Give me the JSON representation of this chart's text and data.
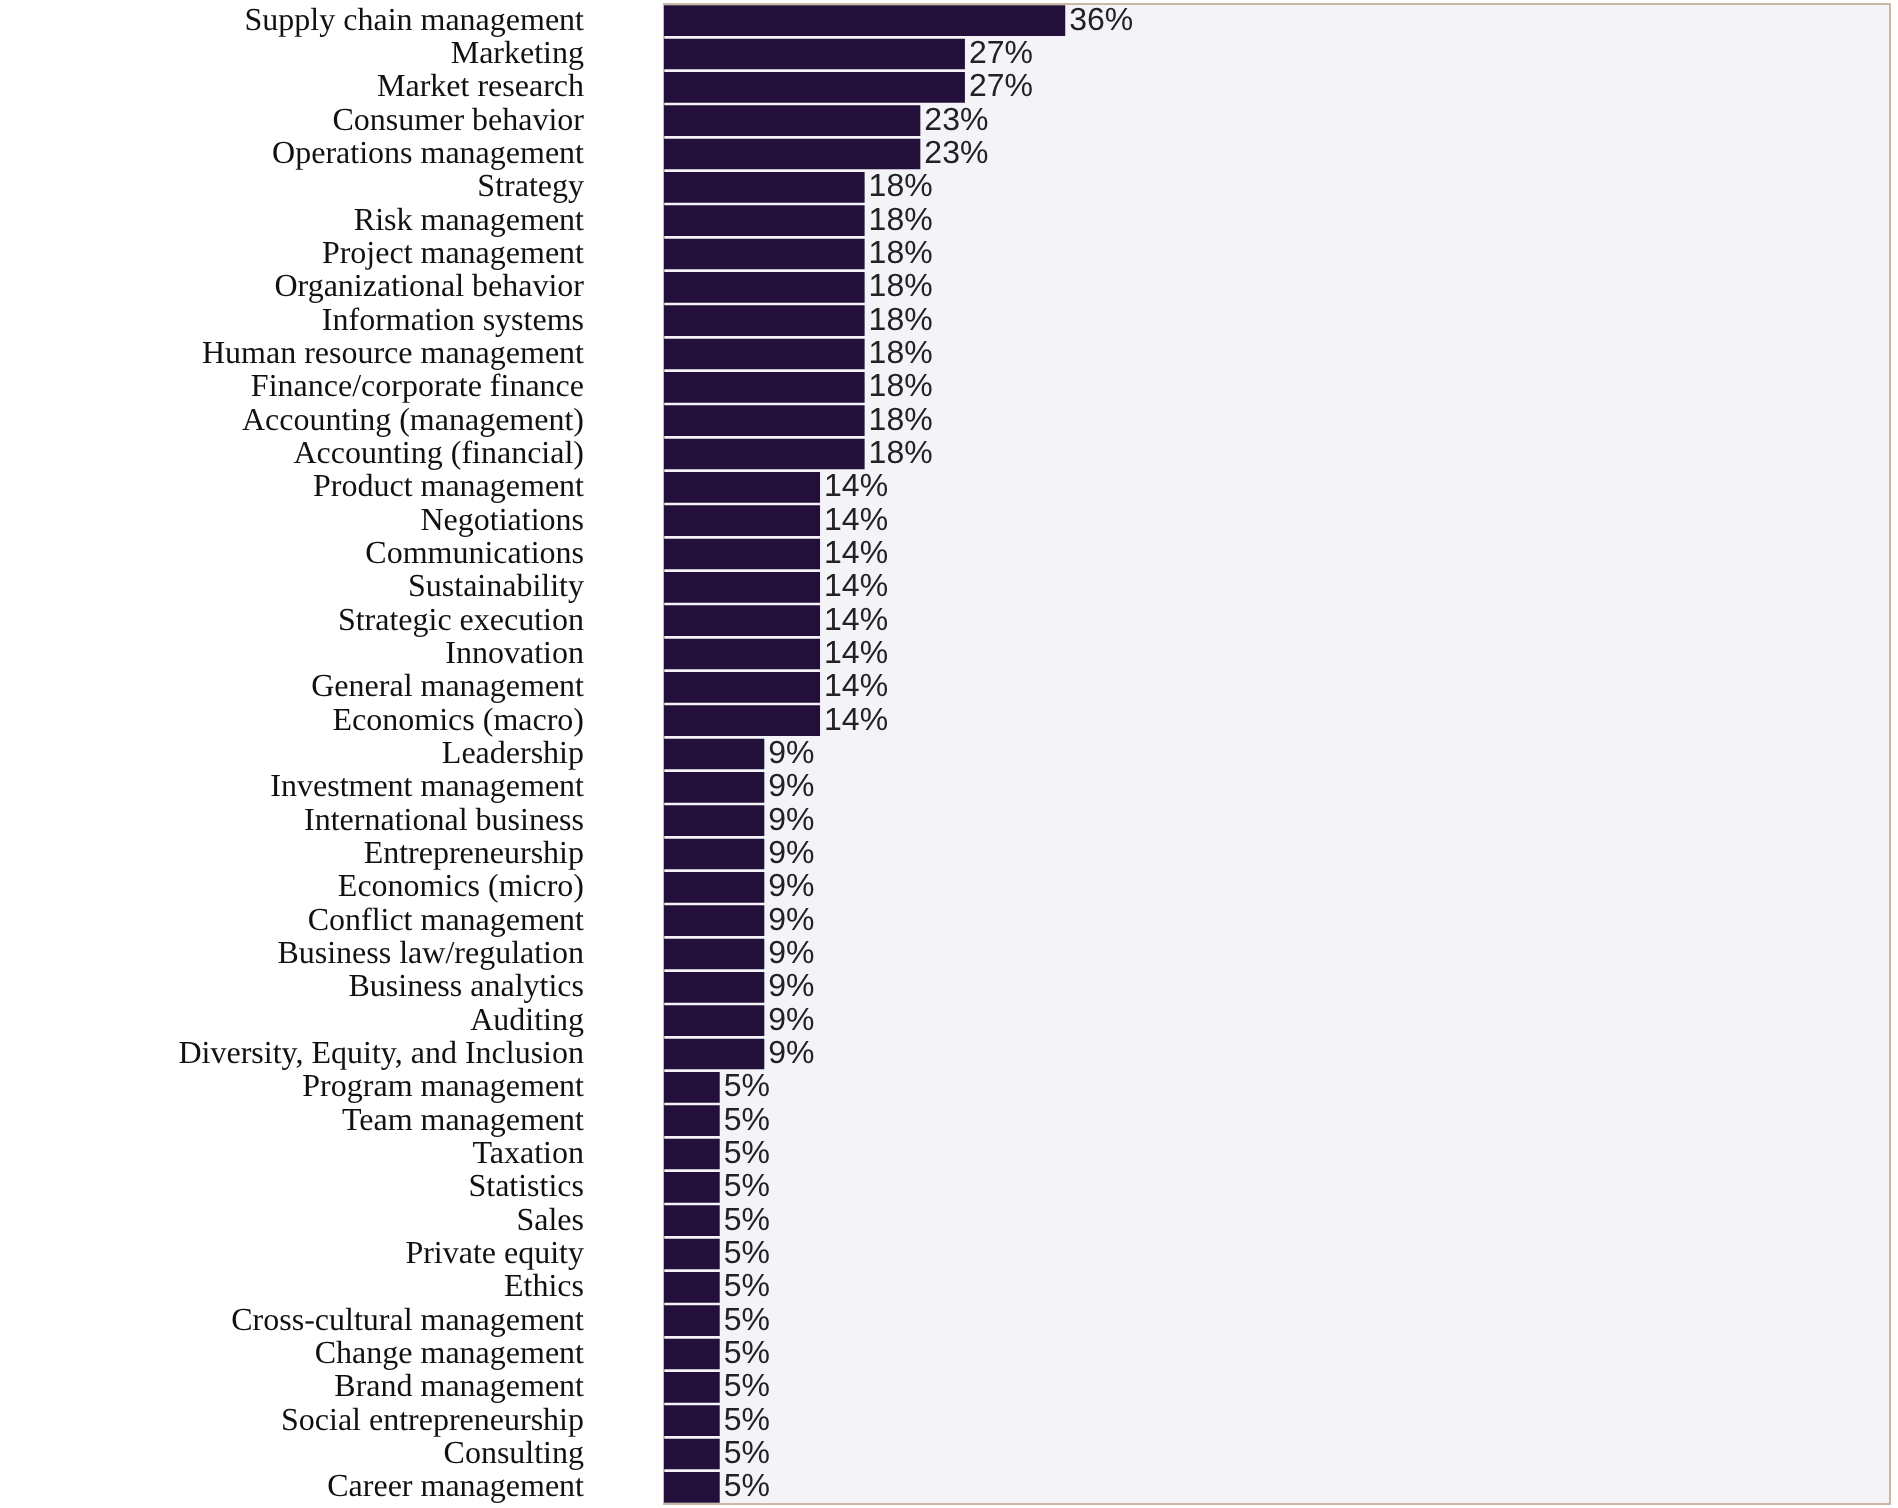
{
  "chart_data": {
    "type": "bar",
    "orientation": "horizontal",
    "categories": [
      "Supply chain management",
      "Marketing",
      "Market research",
      "Consumer behavior",
      "Operations management",
      "Strategy",
      "Risk management",
      "Project management",
      "Organizational behavior",
      "Information systems",
      "Human resource management",
      "Finance/corporate finance",
      "Accounting (management)",
      "Accounting (financial)",
      "Product management",
      "Negotiations",
      "Communications",
      "Sustainability",
      "Strategic execution",
      "Innovation",
      "General management",
      "Economics (macro)",
      "Leadership",
      "Investment management",
      "International business",
      "Entrepreneurship",
      "Economics (micro)",
      "Conflict management",
      "Business law/regulation",
      "Business analytics",
      "Auditing",
      "Diversity, Equity, and Inclusion",
      "Program management",
      "Team management",
      "Taxation",
      "Statistics",
      "Sales",
      "Private equity",
      "Ethics",
      "Cross-cultural management",
      "Change management",
      "Brand management",
      "Social entrepreneurship",
      "Consulting",
      "Career management"
    ],
    "values": [
      36,
      27,
      27,
      23,
      23,
      18,
      18,
      18,
      18,
      18,
      18,
      18,
      18,
      18,
      14,
      14,
      14,
      14,
      14,
      14,
      14,
      14,
      9,
      9,
      9,
      9,
      9,
      9,
      9,
      9,
      9,
      9,
      5,
      5,
      5,
      5,
      5,
      5,
      5,
      5,
      5,
      5,
      5,
      5,
      5
    ],
    "value_labels": [
      "36%",
      "27%",
      "27%",
      "23%",
      "23%",
      "18%",
      "18%",
      "18%",
      "18%",
      "18%",
      "18%",
      "18%",
      "18%",
      "18%",
      "14%",
      "14%",
      "14%",
      "14%",
      "14%",
      "14%",
      "14%",
      "14%",
      "9%",
      "9%",
      "9%",
      "9%",
      "9%",
      "9%",
      "9%",
      "9%",
      "9%",
      "9%",
      "5%",
      "5%",
      "5%",
      "5%",
      "5%",
      "5%",
      "5%",
      "5%",
      "5%",
      "5%",
      "5%",
      "5%",
      "5%"
    ],
    "color": "#22103a",
    "xlim": [
      0,
      110
    ],
    "tick_labels": "y"
  }
}
